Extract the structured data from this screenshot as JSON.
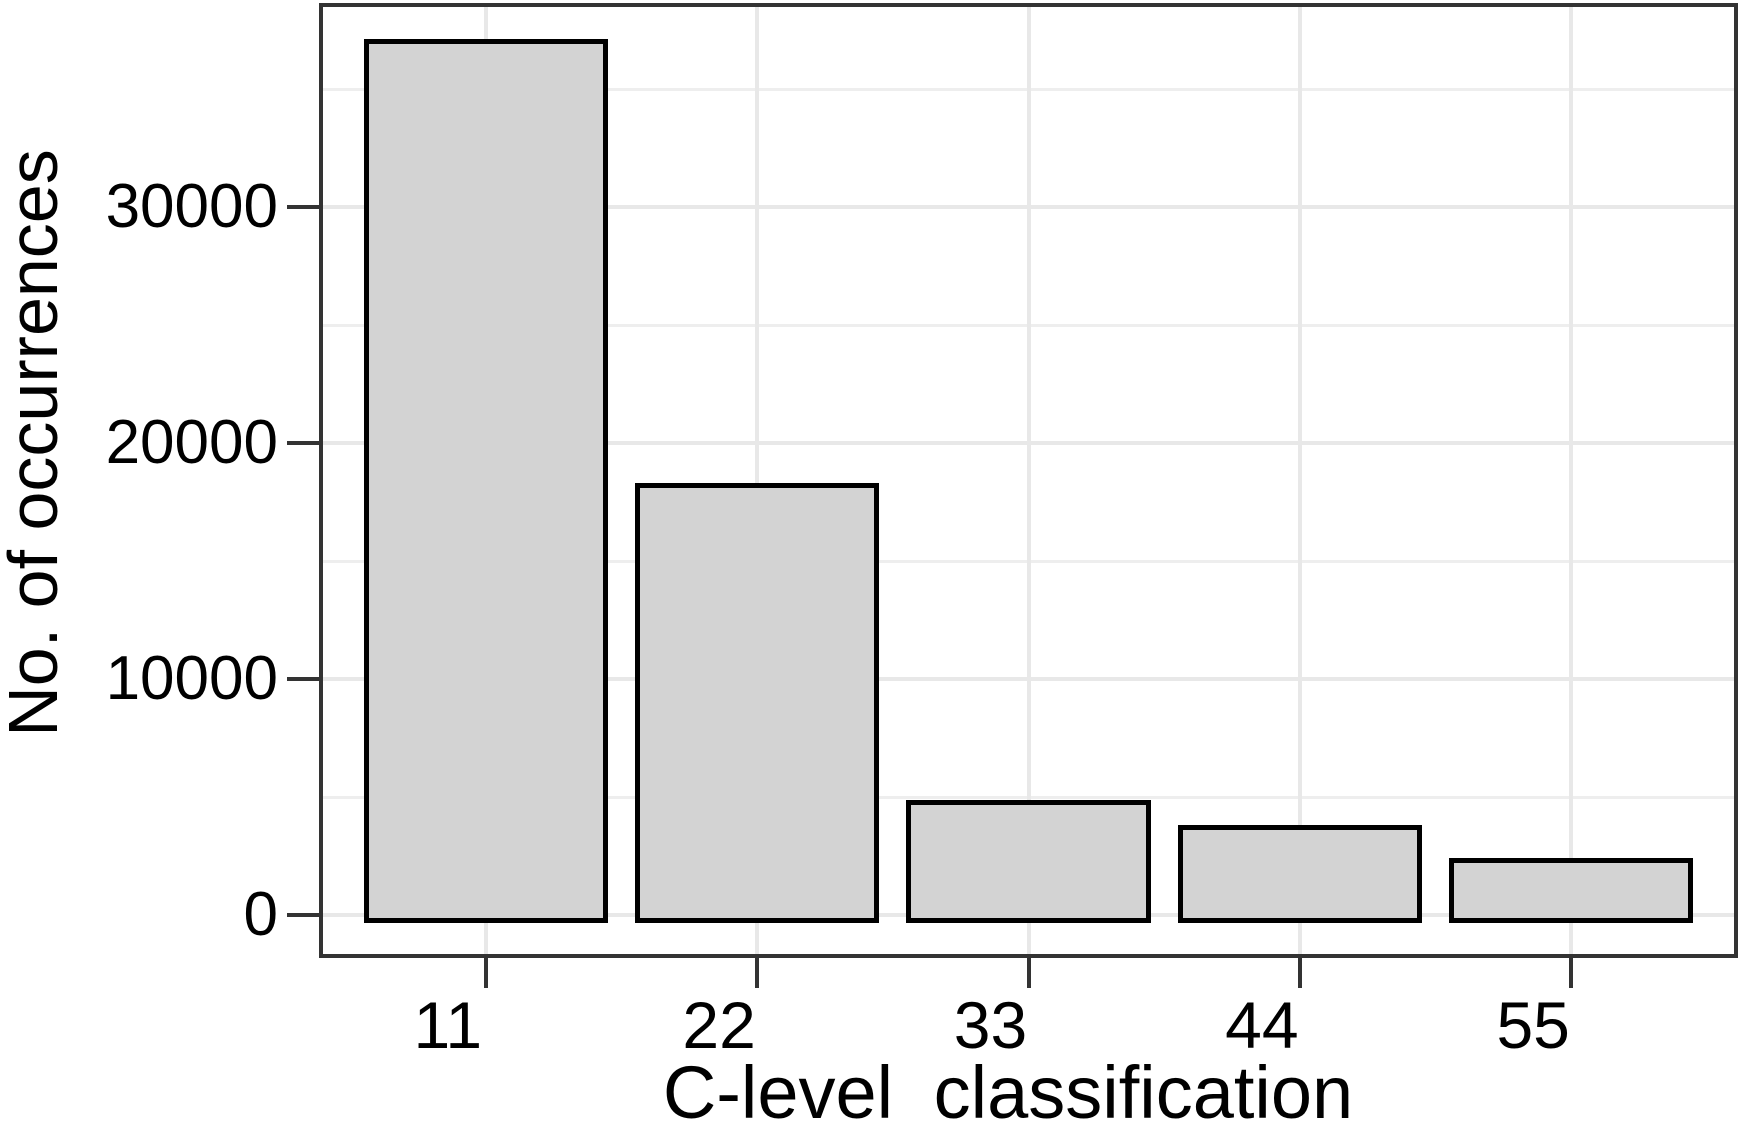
{
  "figure": {
    "background": "#ffffff"
  },
  "chart_data": {
    "type": "bar",
    "title": "",
    "xlabel": "C-level classification",
    "ylabel": "No. of occurrences",
    "categories": [
      "11",
      "22",
      "33",
      "44",
      "55"
    ],
    "values": [
      37000,
      18200,
      4750,
      3700,
      2300
    ],
    "y_major_ticks": [
      0,
      10000,
      20000,
      30000
    ],
    "y_tick_labels": [
      "0",
      "10000",
      "20000",
      "30000"
    ],
    "y_minor_ticks": [
      5000,
      15000,
      25000,
      35000
    ],
    "ylim_display": [
      -1650,
      38475
    ],
    "grid": true,
    "legend_position": "none",
    "bar_width_ratio": 0.9,
    "colors": {
      "bar_fill": "#d3d3d3",
      "bar_stroke": "#000000",
      "panel_border": "#333333",
      "grid_major": "#e8e8e8",
      "grid_minor": "#eeeeee",
      "tick_mark": "#333333",
      "text": "#000000",
      "background": "#ffffff"
    }
  }
}
